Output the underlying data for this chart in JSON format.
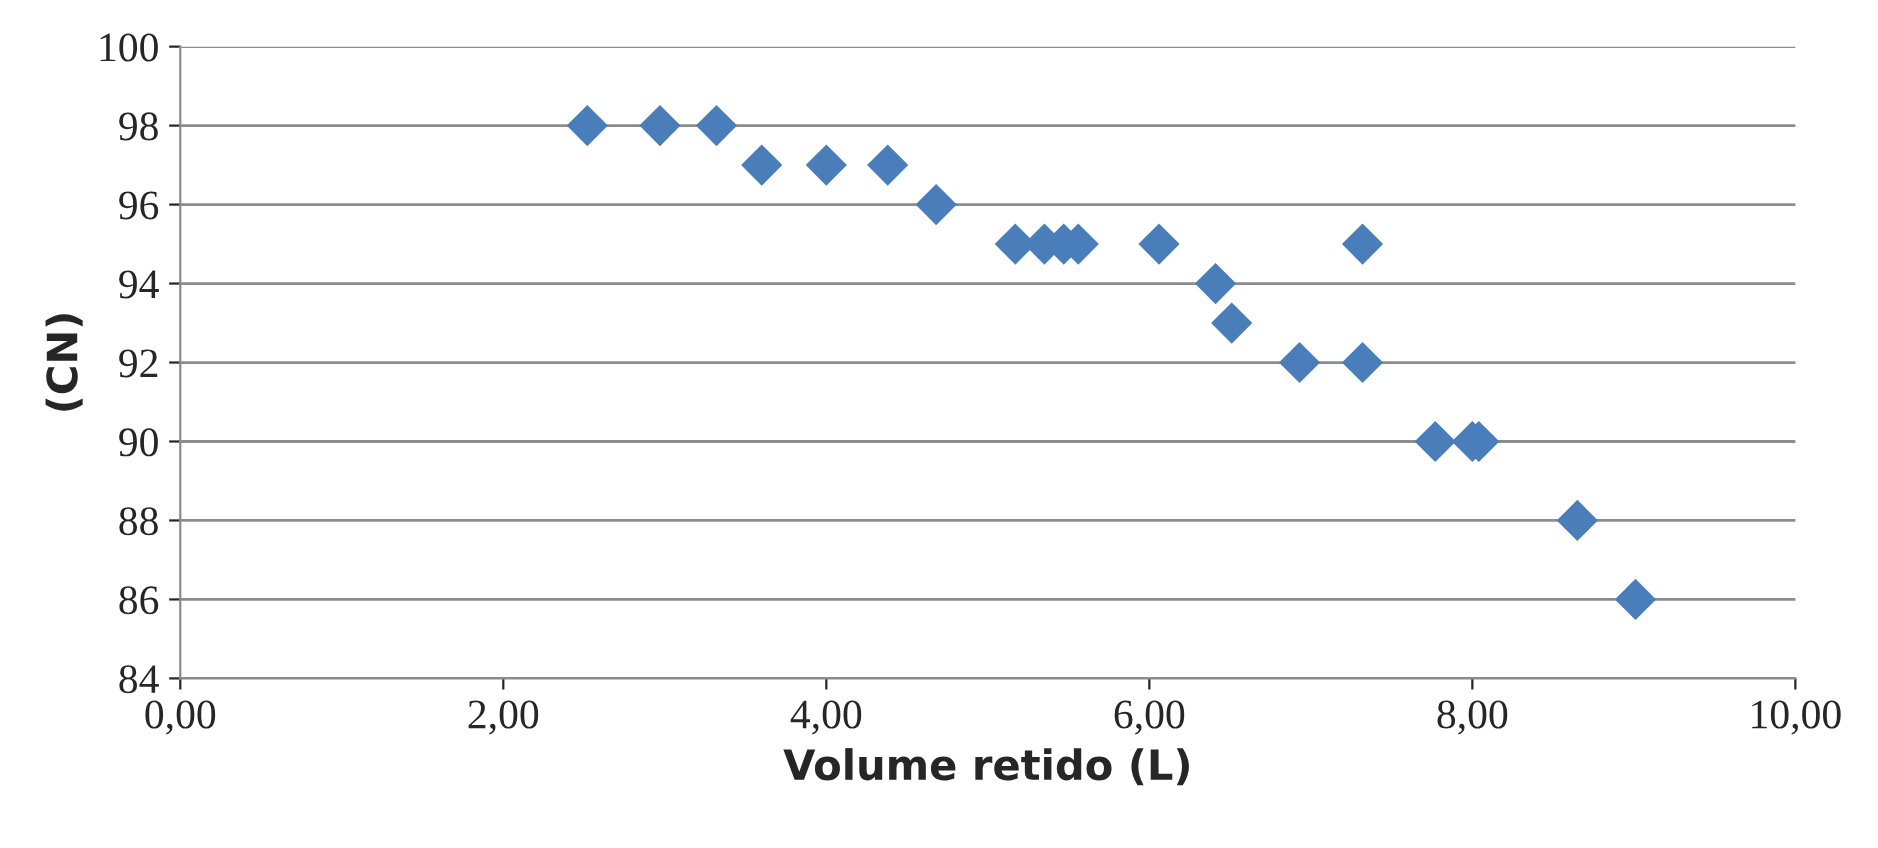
{
  "chart_data": {
    "type": "scatter",
    "xlabel": "Volume retido (L)",
    "ylabel": "(CN)",
    "x": [
      2.52,
      2.97,
      3.32,
      3.6,
      4.0,
      4.38,
      4.68,
      5.17,
      5.35,
      5.47,
      5.56,
      6.06,
      6.41,
      6.51,
      6.93,
      7.32,
      7.32,
      7.77,
      8.0,
      8.04,
      8.65,
      9.01
    ],
    "series": [
      {
        "color": "#4a7ebb",
        "values": [
          98,
          98,
          98,
          97,
          97,
          97,
          96,
          95,
          95,
          95,
          95,
          95,
          94,
          93,
          92,
          95,
          92,
          90,
          90,
          90,
          88,
          86
        ]
      }
    ],
    "xlim": [
      0,
      10
    ],
    "xticks": [
      {
        "value": 0,
        "label": "0,00"
      },
      {
        "value": 2,
        "label": "2,00"
      },
      {
        "value": 4,
        "label": "4,00"
      },
      {
        "value": 6,
        "label": "6,00"
      },
      {
        "value": 8,
        "label": "8,00"
      },
      {
        "value": 10,
        "label": "10,00"
      }
    ],
    "ylim": [
      84,
      100
    ],
    "yticks": [
      84,
      86,
      88,
      90,
      92,
      94,
      96,
      98,
      100
    ],
    "grid": "y",
    "marker": "diamond"
  }
}
